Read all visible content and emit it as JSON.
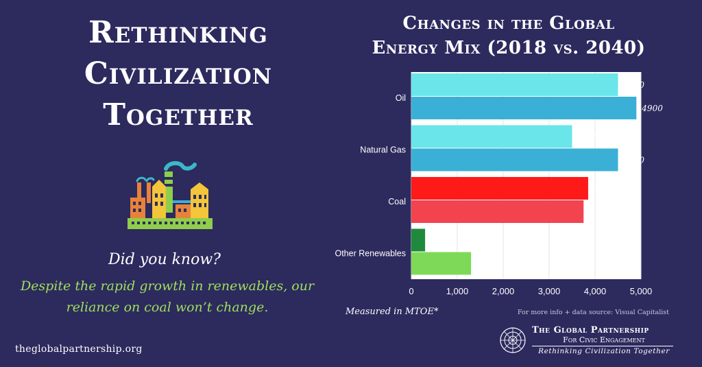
{
  "headline": {
    "line1": "Rethinking",
    "line2": "Civilization",
    "line3": "Together"
  },
  "did_you_know": "Did you know?",
  "fact_line1": "Despite the rapid growth in renewables, our",
  "fact_line2": "reliance on coal won’t change.",
  "website": "theglobalpartnership.org",
  "chart_title_line1": "Changes in the Global",
  "chart_title_line2": "Energy Mix (2018 vs. 2040)",
  "measured_note": "Measured in MTOE*",
  "source_note": "For more info + data source: Visual Capitalist",
  "org": {
    "name_line1": "The Global Partnership",
    "name_line2": "For Civic Engagement",
    "tagline": "Rethinking Civilization Together"
  },
  "colors": {
    "background": "#2d2a5e",
    "fact_text": "#9fe05a",
    "grid": "#e4e4ea"
  },
  "chart_data": {
    "type": "bar",
    "orientation": "horizontal",
    "categories": [
      "Oil",
      "Natural Gas",
      "Coal",
      "Other Renewables"
    ],
    "bars": [
      {
        "category": "Oil",
        "values": [
          4500,
          4900
        ],
        "colors": [
          "#6ae6ea",
          "#3ab0d6"
        ]
      },
      {
        "category": "Natural Gas",
        "values": [
          3500,
          4500
        ],
        "colors": [
          "#6ae6ea",
          "#3ab0d6"
        ]
      },
      {
        "category": "Coal",
        "values": [
          3850,
          3750
        ],
        "colors": [
          "#ff1a1a",
          "#f2434f"
        ]
      },
      {
        "category": "Other Renewables",
        "values": [
          300,
          1300
        ],
        "colors": [
          "#1f8a3c",
          "#7dd957"
        ]
      }
    ],
    "x_ticks": [
      "0",
      "1,000",
      "2,000",
      "3,000",
      "4,000",
      "5,000"
    ],
    "xlim": [
      0,
      5000
    ],
    "grid": true,
    "plot_background": "#ffffff"
  }
}
